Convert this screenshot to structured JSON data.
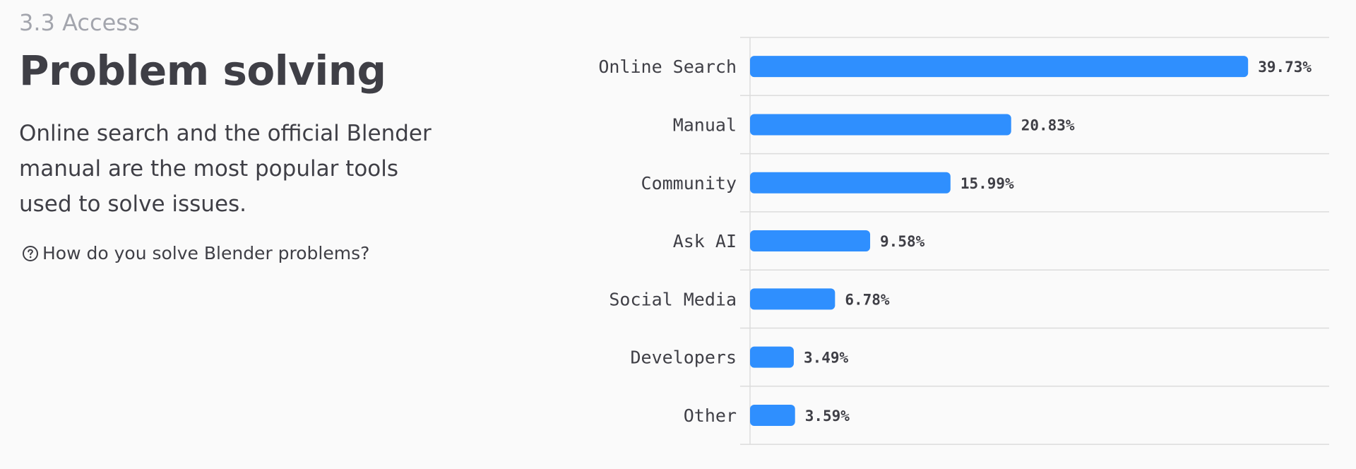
{
  "header": {
    "section": "3.3 Access",
    "title": "Problem solving"
  },
  "description": "Online search and the official Blender manual are the most popular tools used to solve issues.",
  "question": {
    "icon": "question-circle-icon",
    "text": "How do you solve Blender problems?"
  },
  "colors": {
    "bar": "#2f8ffe",
    "grid": "#dcdcdc",
    "background": "#fafafa"
  },
  "chart_data": {
    "type": "bar",
    "orientation": "horizontal",
    "categories": [
      "Online Search",
      "Manual",
      "Community",
      "Ask AI",
      "Social Media",
      "Developers",
      "Other"
    ],
    "values": [
      39.73,
      20.83,
      15.99,
      9.58,
      6.78,
      3.49,
      3.59
    ],
    "value_labels": [
      "39.73%",
      "20.83%",
      "15.99%",
      "9.58%",
      "6.78%",
      "3.49%",
      "3.59%"
    ],
    "xlim": [
      0,
      40
    ],
    "grid": true,
    "legend": "none"
  }
}
